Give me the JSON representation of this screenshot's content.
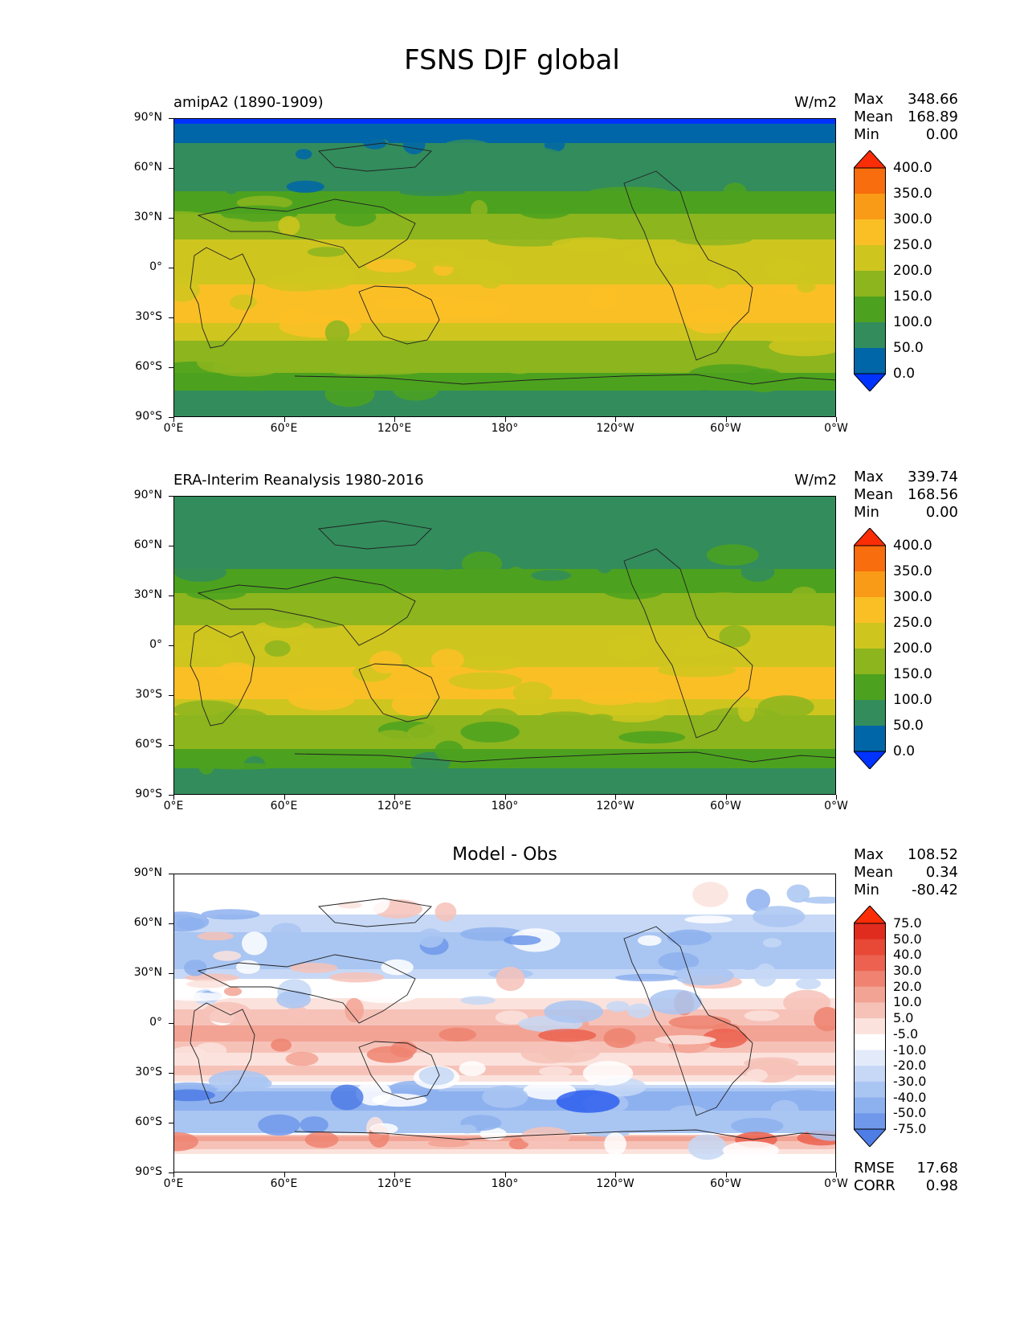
{
  "title": "FSNS DJF global",
  "colors": {
    "abs_levels": [
      "#0033ff",
      "#0066a8",
      "#338c5c",
      "#4ca21e",
      "#8cb51e",
      "#cfc51f",
      "#fbbf26",
      "#f99b16",
      "#f86d0d",
      "#fb2d06"
    ],
    "diff_levels": [
      "#0a3cff",
      "#2f5fef",
      "#4f7de6",
      "#6f98ea",
      "#8db0ef",
      "#a9c5f2",
      "#c6d8f6",
      "#e3ebfb",
      "#ffffff",
      "#ffffff",
      "#fbe2dd",
      "#f6c2b8",
      "#f2a394",
      "#ef8270",
      "#ec614f",
      "#e84836",
      "#e02b1f",
      "#fb2d06"
    ]
  },
  "chart_data": [
    {
      "type": "heatmap",
      "subtype": "filled-contour-map",
      "title_left": "amipA2 (1890-1909)",
      "title_right": "W/m2",
      "stats": {
        "max_label": "Max",
        "max": "348.66",
        "mean_label": "Mean",
        "mean": "168.89",
        "min_label": "Min",
        "min": "0.00"
      },
      "x_ticks": [
        "0°E",
        "60°E",
        "120°E",
        "180°",
        "120°W",
        "60°W",
        "0°W"
      ],
      "y_ticks": [
        "90°N",
        "60°N",
        "30°N",
        "0°",
        "30°S",
        "60°S",
        "90°S"
      ],
      "colorbar": {
        "levels": [
          "400.0",
          "350.0",
          "300.0",
          "250.0",
          "200.0",
          "150.0",
          "100.0",
          "50.0",
          "0.0"
        ],
        "extend": "both"
      },
      "zonal_profile": {
        "lat": [
          90,
          87,
          85,
          80,
          70,
          60,
          50,
          45,
          40,
          35,
          30,
          25,
          20,
          15,
          10,
          5,
          0,
          -5,
          -10,
          -15,
          -20,
          -25,
          -30,
          -35,
          -40,
          -45,
          -50,
          -55,
          -60,
          -65,
          -70,
          -75,
          -80,
          -85,
          -90
        ],
        "value": [
          0,
          0,
          30,
          45,
          55,
          65,
          80,
          110,
          130,
          145,
          160,
          175,
          195,
          205,
          215,
          225,
          235,
          240,
          250,
          255,
          262,
          265,
          260,
          240,
          210,
          195,
          180,
          165,
          160,
          145,
          115,
          95,
          90,
          90,
          90
        ]
      }
    },
    {
      "type": "heatmap",
      "subtype": "filled-contour-map",
      "title_left": "ERA-Interim Reanalysis 1980-2016",
      "title_right": "W/m2",
      "stats": {
        "max_label": "Max",
        "max": "339.74",
        "mean_label": "Mean",
        "mean": "168.56",
        "min_label": "Min",
        "min": "0.00"
      },
      "x_ticks": [
        "0°E",
        "60°E",
        "120°E",
        "180°",
        "120°W",
        "60°W",
        "0°W"
      ],
      "y_ticks": [
        "90°N",
        "60°N",
        "30°N",
        "0°",
        "30°S",
        "60°S",
        "90°S"
      ],
      "colorbar": {
        "levels": [
          "400.0",
          "350.0",
          "300.0",
          "250.0",
          "200.0",
          "150.0",
          "100.0",
          "50.0",
          "0.0"
        ],
        "extend": "both"
      },
      "zonal_profile": {
        "lat": [
          90,
          85,
          80,
          70,
          60,
          50,
          45,
          40,
          35,
          30,
          25,
          20,
          15,
          10,
          5,
          0,
          -5,
          -10,
          -15,
          -20,
          -25,
          -30,
          -35,
          -40,
          -45,
          -50,
          -55,
          -60,
          -65,
          -70,
          -75,
          -80,
          -85,
          -90
        ],
        "value": [
          60,
          60,
          65,
          70,
          75,
          85,
          105,
          125,
          140,
          155,
          170,
          185,
          195,
          205,
          215,
          220,
          230,
          245,
          255,
          260,
          262,
          258,
          235,
          205,
          190,
          175,
          160,
          155,
          140,
          110,
          95,
          90,
          90,
          90
        ]
      }
    },
    {
      "type": "heatmap",
      "subtype": "filled-contour-map",
      "title_center": "Model - Obs",
      "stats": {
        "max_label": "Max",
        "max": "108.52",
        "mean_label": "Mean",
        "mean": "0.34",
        "min_label": "Min",
        "min": "-80.42"
      },
      "metrics": {
        "rmse_label": "RMSE",
        "rmse": "17.68",
        "corr_label": "CORR",
        "corr": "0.98"
      },
      "x_ticks": [
        "0°E",
        "60°E",
        "120°E",
        "180°",
        "120°W",
        "60°W",
        "0°W"
      ],
      "y_ticks": [
        "90°N",
        "60°N",
        "30°N",
        "0°",
        "30°S",
        "60°S",
        "90°S"
      ],
      "colorbar": {
        "levels": [
          "75.0",
          "50.0",
          "40.0",
          "30.0",
          "20.0",
          "10.0",
          "5.0",
          "-5.0",
          "-10.0",
          "-20.0",
          "-30.0",
          "-40.0",
          "-50.0",
          "-75.0"
        ],
        "extend": "both"
      },
      "zonal_profile": {
        "lat": [
          90,
          75,
          60,
          50,
          40,
          30,
          20,
          10,
          5,
          0,
          -5,
          -10,
          -15,
          -20,
          -25,
          -30,
          -35,
          -40,
          -45,
          -50,
          -55,
          -60,
          -65,
          -68,
          -72,
          -80,
          -90
        ],
        "value": [
          0,
          0,
          -8,
          -12,
          -15,
          -8,
          2,
          8,
          15,
          18,
          25,
          22,
          12,
          8,
          10,
          12,
          5,
          -18,
          -30,
          -25,
          -12,
          -20,
          -15,
          30,
          15,
          2,
          0
        ]
      }
    }
  ]
}
